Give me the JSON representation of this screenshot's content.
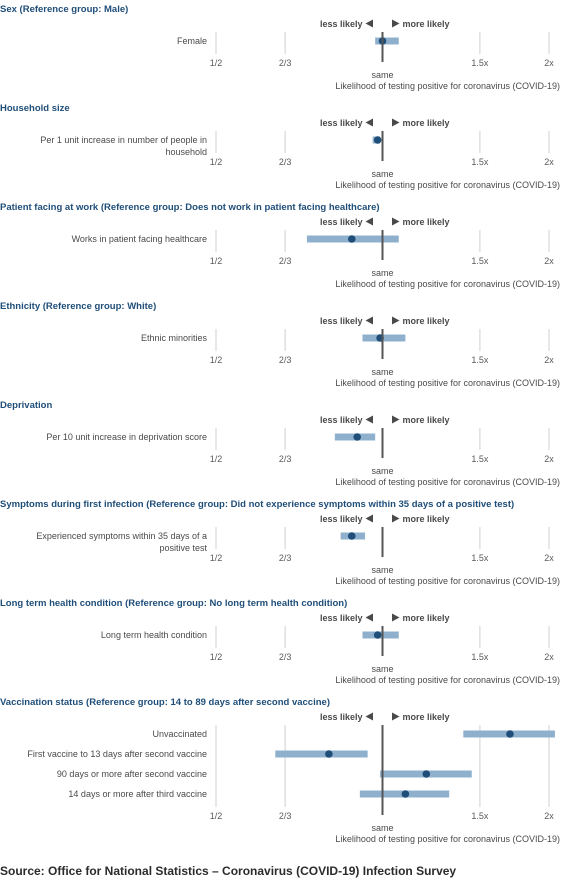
{
  "chart_data": [
    {
      "type": "forest",
      "title": "Sex (Reference group: Male)",
      "xscale": "log",
      "xlim": [
        0.5,
        2
      ],
      "xticks": [
        {
          "v": 0.5,
          "label": "1/2"
        },
        {
          "v": 0.6667,
          "label": "2/3"
        },
        {
          "v": 1.5,
          "label": "1.5x"
        },
        {
          "v": 2,
          "label": "2x"
        }
      ],
      "reference": {
        "v": 1,
        "label": "same"
      },
      "direction_left": "less likely",
      "direction_right": "more likely",
      "xlabel": "Likelihood of testing positive for coronavirus (COVID-19)",
      "rows": [
        {
          "label": [
            "Female"
          ],
          "estimate": 1.0,
          "lower": 0.97,
          "upper": 1.07
        }
      ]
    },
    {
      "type": "forest",
      "title": "Household size",
      "xscale": "log",
      "xlim": [
        0.5,
        2
      ],
      "xticks": [
        {
          "v": 0.5,
          "label": "1/2"
        },
        {
          "v": 0.6667,
          "label": "2/3"
        },
        {
          "v": 1.5,
          "label": "1.5x"
        },
        {
          "v": 2,
          "label": "2x"
        }
      ],
      "reference": {
        "v": 1,
        "label": "same"
      },
      "direction_left": "less likely",
      "direction_right": "more likely",
      "xlabel": "Likelihood of testing positive for coronavirus (COVID-19)",
      "rows": [
        {
          "label": [
            "Per 1 unit increase in number of people in",
            "household"
          ],
          "estimate": 0.98,
          "lower": 0.96,
          "upper": 0.99
        }
      ]
    },
    {
      "type": "forest",
      "title": "Patient facing at work (Reference group: Does not work in patient facing healthcare)",
      "xscale": "log",
      "xlim": [
        0.5,
        2
      ],
      "xticks": [
        {
          "v": 0.5,
          "label": "1/2"
        },
        {
          "v": 0.6667,
          "label": "2/3"
        },
        {
          "v": 1.5,
          "label": "1.5x"
        },
        {
          "v": 2,
          "label": "2x"
        }
      ],
      "reference": {
        "v": 1,
        "label": "same"
      },
      "direction_left": "less likely",
      "direction_right": "more likely",
      "xlabel": "Likelihood of testing positive for coronavirus (COVID-19)",
      "rows": [
        {
          "label": [
            "Works in patient facing healthcare"
          ],
          "estimate": 0.88,
          "lower": 0.73,
          "upper": 1.07
        }
      ]
    },
    {
      "type": "forest",
      "title": "Ethnicity (Reference group: White)",
      "xscale": "log",
      "xlim": [
        0.5,
        2
      ],
      "xticks": [
        {
          "v": 0.5,
          "label": "1/2"
        },
        {
          "v": 0.6667,
          "label": "2/3"
        },
        {
          "v": 1.5,
          "label": "1.5x"
        },
        {
          "v": 2,
          "label": "2x"
        }
      ],
      "reference": {
        "v": 1,
        "label": "same"
      },
      "direction_left": "less likely",
      "direction_right": "more likely",
      "xlabel": "Likelihood of testing positive for coronavirus (COVID-19)",
      "rows": [
        {
          "label": [
            "Ethnic minorities"
          ],
          "estimate": 0.99,
          "lower": 0.92,
          "upper": 1.1
        }
      ]
    },
    {
      "type": "forest",
      "title": "Deprivation",
      "xscale": "log",
      "xlim": [
        0.5,
        2
      ],
      "xticks": [
        {
          "v": 0.5,
          "label": "1/2"
        },
        {
          "v": 0.6667,
          "label": "2/3"
        },
        {
          "v": 1.5,
          "label": "1.5x"
        },
        {
          "v": 2,
          "label": "2x"
        }
      ],
      "reference": {
        "v": 1,
        "label": "same"
      },
      "direction_left": "less likely",
      "direction_right": "more likely",
      "xlabel": "Likelihood of testing positive for coronavirus (COVID-19)",
      "rows": [
        {
          "label": [
            "Per 10 unit increase in deprivation score"
          ],
          "estimate": 0.9,
          "lower": 0.82,
          "upper": 0.97
        }
      ]
    },
    {
      "type": "forest",
      "title": "Symptoms during first infection (Reference group: Did not experience symptoms within 35 days of a positive test)",
      "xscale": "log",
      "xlim": [
        0.5,
        2
      ],
      "xticks": [
        {
          "v": 0.5,
          "label": "1/2"
        },
        {
          "v": 0.6667,
          "label": "2/3"
        },
        {
          "v": 1.5,
          "label": "1.5x"
        },
        {
          "v": 2,
          "label": "2x"
        }
      ],
      "reference": {
        "v": 1,
        "label": "same"
      },
      "direction_left": "less likely",
      "direction_right": "more likely",
      "xlabel": "Likelihood of testing positive for coronavirus (COVID-19)",
      "rows": [
        {
          "label": [
            "Experienced symptoms within 35 days of a",
            "positive test"
          ],
          "estimate": 0.88,
          "lower": 0.84,
          "upper": 0.93
        }
      ]
    },
    {
      "type": "forest",
      "title": "Long term health condition (Reference group: No long term health condition)",
      "xscale": "log",
      "xlim": [
        0.5,
        2
      ],
      "xticks": [
        {
          "v": 0.5,
          "label": "1/2"
        },
        {
          "v": 0.6667,
          "label": "2/3"
        },
        {
          "v": 1.5,
          "label": "1.5x"
        },
        {
          "v": 2,
          "label": "2x"
        }
      ],
      "reference": {
        "v": 1,
        "label": "same"
      },
      "direction_left": "less likely",
      "direction_right": "more likely",
      "xlabel": "Likelihood of testing positive for coronavirus (COVID-19)",
      "rows": [
        {
          "label": [
            "Long term health condition"
          ],
          "estimate": 0.98,
          "lower": 0.92,
          "upper": 1.07
        }
      ]
    },
    {
      "type": "forest",
      "title": "Vaccination status (Reference group: 14 to 89 days after second vaccine)",
      "xscale": "log",
      "xlim": [
        0.5,
        2
      ],
      "xticks": [
        {
          "v": 0.5,
          "label": "1/2"
        },
        {
          "v": 0.6667,
          "label": "2/3"
        },
        {
          "v": 1.5,
          "label": "1.5x"
        },
        {
          "v": 2,
          "label": "2x"
        }
      ],
      "reference": {
        "v": 1,
        "label": "same"
      },
      "direction_left": "less likely",
      "direction_right": "more likely",
      "xlabel": "Likelihood of testing positive for coronavirus (COVID-19)",
      "rows": [
        {
          "label": [
            "Unvaccinated"
          ],
          "estimate": 1.7,
          "lower": 1.4,
          "upper": 2.05
        },
        {
          "label": [
            "First vaccine to 13 days after second vaccine"
          ],
          "estimate": 0.8,
          "lower": 0.64,
          "upper": 0.94
        },
        {
          "label": [
            "90 days or more after second vaccine"
          ],
          "estimate": 1.2,
          "lower": 0.99,
          "upper": 1.45
        },
        {
          "label": [
            "14 days or more after third vaccine"
          ],
          "estimate": 1.1,
          "lower": 0.91,
          "upper": 1.32
        }
      ]
    }
  ],
  "colors": {
    "title": "#1f4e79",
    "bar": "#8fb0cc",
    "point": "#1f4e79",
    "reference_line": "#555555",
    "tick": "#d0d0d0"
  },
  "source": "Source: Office for National Statistics – Coronavirus (COVID-19) Infection Survey"
}
